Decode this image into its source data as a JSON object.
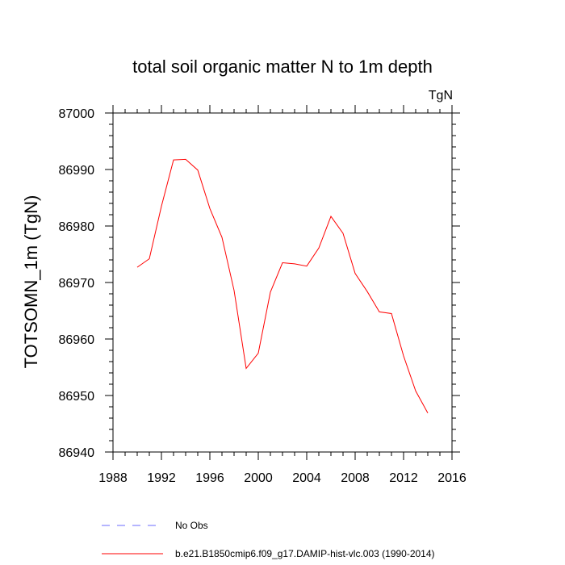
{
  "chart_data": {
    "type": "line",
    "title": "total soil organic matter N to 1m depth",
    "units_label": "TgN",
    "ylabel": "TOTSOMN_1m  (TgN)",
    "xlabel": "",
    "xlim": [
      1988,
      2016
    ],
    "ylim": [
      86940,
      87000
    ],
    "x_major_ticks": [
      1988,
      1992,
      1996,
      2000,
      2004,
      2008,
      2012,
      2016
    ],
    "x_tick_labels": [
      "1988",
      "1992",
      "1996",
      "2000",
      "2004",
      "2008",
      "2012",
      "2016"
    ],
    "y_major_ticks": [
      86940,
      86950,
      86960,
      86970,
      86980,
      86990,
      87000
    ],
    "y_tick_labels": [
      "86940",
      "86950",
      "86960",
      "86970",
      "86980",
      "86990",
      "87000"
    ],
    "grid": false,
    "legend_position": "bottom",
    "series": [
      {
        "name": "b.e21.B1850cmip6.f09_g17.DAMIP-hist-vlc.003 (1990-2014)",
        "color": "#ff0000",
        "style": "solid",
        "x": [
          1990,
          1991,
          1992,
          1993,
          1994,
          1995,
          1996,
          1997,
          1998,
          1999,
          2000,
          2001,
          2002,
          2003,
          2004,
          2005,
          2006,
          2007,
          2008,
          2009,
          2010,
          2011,
          2012,
          2013,
          2014
        ],
        "y": [
          86972.7,
          86974.2,
          86983.5,
          86991.7,
          86991.8,
          86989.9,
          86983.1,
          86978.0,
          86968.6,
          86954.8,
          86957.5,
          86968.3,
          86973.5,
          86973.3,
          86972.9,
          86976.1,
          86981.7,
          86978.7,
          86971.6,
          86968.4,
          86964.8,
          86964.5,
          86957.0,
          86950.8,
          86946.9
        ]
      }
    ],
    "legend": [
      {
        "label": "No Obs",
        "color": "#6b6bff",
        "style": "dashed"
      },
      {
        "label": "b.e21.B1850cmip6.f09_g17.DAMIP-hist-vlc.003 (1990-2014)",
        "color": "#ff0000",
        "style": "solid"
      }
    ]
  }
}
